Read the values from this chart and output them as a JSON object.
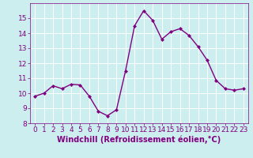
{
  "x": [
    0,
    1,
    2,
    3,
    4,
    5,
    6,
    7,
    8,
    9,
    10,
    11,
    12,
    13,
    14,
    15,
    16,
    17,
    18,
    19,
    20,
    21,
    22,
    23
  ],
  "y": [
    9.8,
    10.0,
    10.5,
    10.3,
    10.6,
    10.55,
    9.8,
    8.8,
    8.5,
    8.9,
    11.5,
    14.5,
    15.5,
    14.85,
    13.6,
    14.1,
    14.3,
    13.85,
    13.1,
    12.2,
    10.85,
    10.3,
    10.2,
    10.3
  ],
  "line_color": "#800080",
  "marker": "D",
  "marker_size": 2.0,
  "line_width": 1.0,
  "bg_color": "#cceeee",
  "grid_color": "#ffffff",
  "xlabel": "Windchill (Refroidissement éolien,°C)",
  "xlabel_color": "#800080",
  "tick_color": "#800080",
  "spine_color": "#800080",
  "ylim": [
    8,
    16
  ],
  "xlim": [
    -0.5,
    23.5
  ],
  "yticks": [
    8,
    9,
    10,
    11,
    12,
    13,
    14,
    15
  ],
  "xticks": [
    0,
    1,
    2,
    3,
    4,
    5,
    6,
    7,
    8,
    9,
    10,
    11,
    12,
    13,
    14,
    15,
    16,
    17,
    18,
    19,
    20,
    21,
    22,
    23
  ],
  "font_size": 6.5,
  "xlabel_fontsize": 7.0
}
